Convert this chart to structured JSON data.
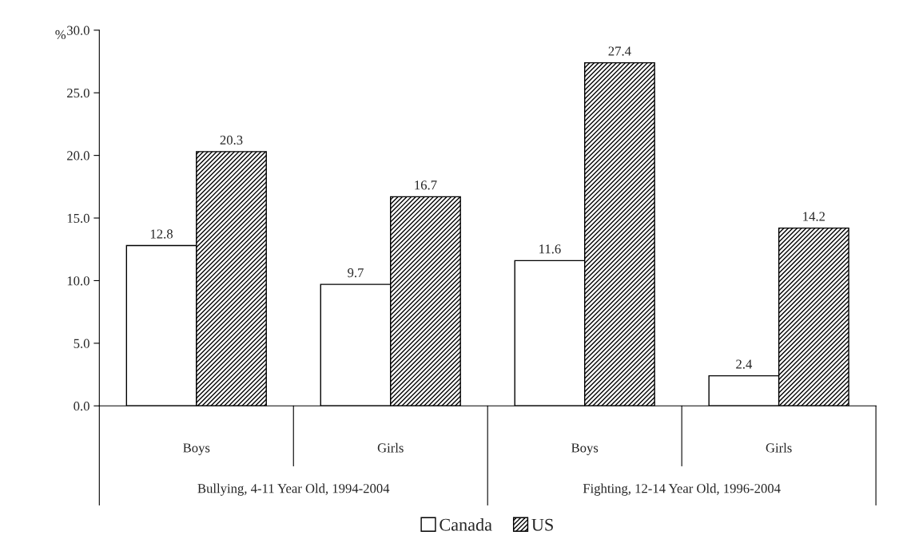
{
  "chart_data": {
    "type": "bar",
    "ylabel": "%",
    "categories": [
      "Boys",
      "Girls",
      "Boys",
      "Girls"
    ],
    "series": [
      {
        "name": "Canada",
        "color": "#ffffff",
        "values": [
          12.8,
          9.7,
          11.6,
          2.4
        ]
      },
      {
        "name": "US",
        "color": "#000000",
        "values": [
          20.3,
          16.7,
          27.4,
          14.2
        ]
      }
    ],
    "annotations": [
      "Bullying, 4-11 Year Old, 1994-2004",
      "Fighting, 12-14 Year Old, 1996-2004"
    ],
    "ylim": [
      0,
      30
    ],
    "yticks": [
      {
        "value": 0,
        "label": "0.0"
      },
      {
        "value": 5,
        "label": "5.0"
      },
      {
        "value": 10,
        "label": "10.0"
      },
      {
        "value": 15,
        "label": "15.0"
      },
      {
        "value": 20,
        "label": "20.0"
      },
      {
        "value": 25,
        "label": "25.0"
      },
      {
        "value": 30,
        "label": "30.0"
      }
    ],
    "data_labels": true,
    "legend": "bottom",
    "grid": false
  }
}
